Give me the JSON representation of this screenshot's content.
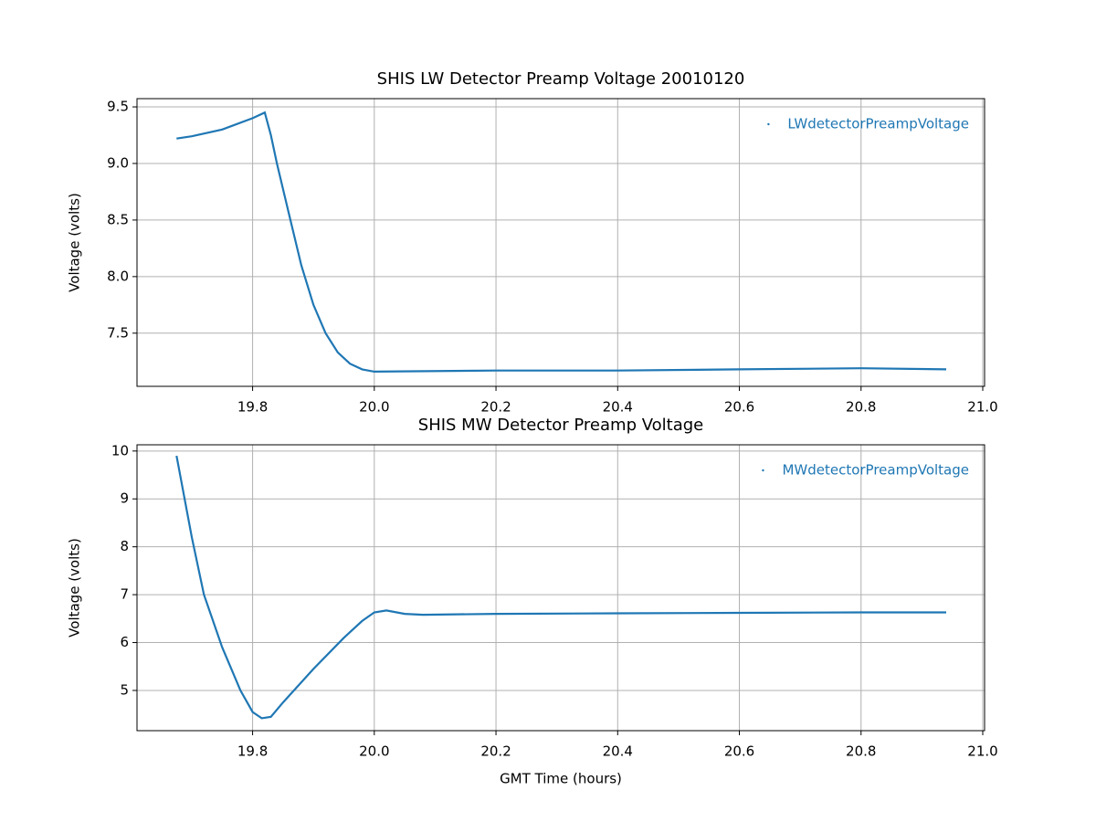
{
  "chart_data": [
    {
      "type": "line",
      "title": "SHIS LW Detector Preamp Voltage 20010120",
      "y_label": "Voltage (volts)",
      "x": [
        19.675,
        19.7,
        19.75,
        19.8,
        19.82,
        19.83,
        19.84,
        19.86,
        19.88,
        19.9,
        19.92,
        19.94,
        19.96,
        19.98,
        20.0,
        20.2,
        20.4,
        20.6,
        20.8,
        20.94
      ],
      "series": [
        {
          "name": "LWdetectorPreampVoltage",
          "color": "#1f77b4",
          "values": [
            9.22,
            9.24,
            9.3,
            9.4,
            9.45,
            9.25,
            9.0,
            8.55,
            8.1,
            7.75,
            7.5,
            7.33,
            7.23,
            7.18,
            7.16,
            7.17,
            7.17,
            7.18,
            7.19,
            7.18
          ]
        }
      ],
      "xlim": [
        19.61,
        21.003
      ],
      "xticks": [
        19.8,
        {
          "value": 20,
          "label": "20.0"
        },
        20.2,
        20.4,
        20.6,
        20.8,
        {
          "value": 21,
          "label": "21.0"
        }
      ],
      "ylim": [
        7.03,
        9.573
      ],
      "yticks": [
        7.5,
        {
          "value": 8,
          "label": "8.0"
        },
        8.5,
        {
          "value": 9,
          "label": "9.0"
        },
        9.5
      ],
      "grid": true,
      "legend": "upper right"
    },
    {
      "type": "line",
      "title": "SHIS MW Detector Preamp Voltage",
      "x_label": "GMT Time (hours)",
      "y_label": "Voltage (volts)",
      "x": [
        19.675,
        19.7,
        19.72,
        19.75,
        19.78,
        19.8,
        19.815,
        19.83,
        19.85,
        19.9,
        19.95,
        19.98,
        20.0,
        20.02,
        20.05,
        20.08,
        20.2,
        20.4,
        20.6,
        20.8,
        20.94
      ],
      "series": [
        {
          "name": "MWdetectorPreampVoltage",
          "color": "#1f77b4",
          "values": [
            9.9,
            8.2,
            7.0,
            5.9,
            5.0,
            4.55,
            4.42,
            4.45,
            4.75,
            5.45,
            6.1,
            6.45,
            6.63,
            6.67,
            6.6,
            6.58,
            6.6,
            6.61,
            6.62,
            6.63,
            6.63
          ]
        }
      ],
      "xlim": [
        19.61,
        21.003
      ],
      "xticks": [
        19.8,
        {
          "value": 20,
          "label": "20.0"
        },
        20.2,
        20.4,
        20.6,
        20.8,
        {
          "value": 21,
          "label": "21.0"
        }
      ],
      "ylim": [
        4.16,
        10.13
      ],
      "yticks": [
        5,
        6,
        7,
        8,
        9,
        10
      ],
      "grid": true,
      "legend": "upper right"
    }
  ]
}
